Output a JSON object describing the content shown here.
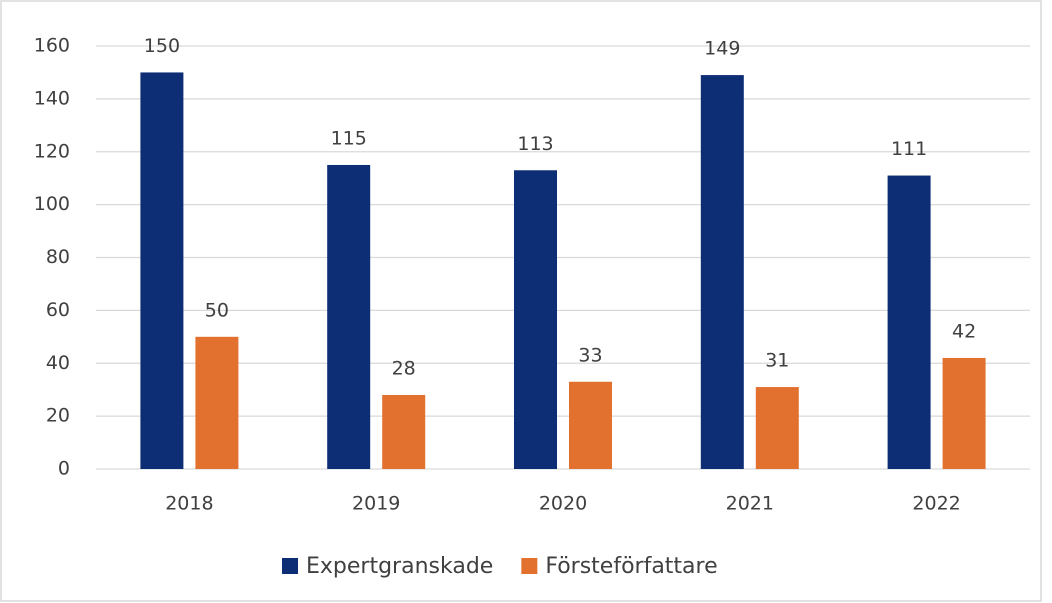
{
  "chart_data": {
    "type": "bar",
    "categories": [
      "2018",
      "2019",
      "2020",
      "2021",
      "2022"
    ],
    "series": [
      {
        "name": "Expertgranskade",
        "color": "#0d2e74",
        "values": [
          150,
          115,
          113,
          149,
          111
        ]
      },
      {
        "name": "Försteförfattare",
        "color": "#e2712f",
        "values": [
          50,
          28,
          33,
          31,
          42
        ]
      }
    ],
    "ylim": [
      0,
      160
    ],
    "yticks": [
      0,
      20,
      40,
      60,
      80,
      100,
      120,
      140,
      160
    ],
    "grid": true,
    "legend": "bottom"
  }
}
